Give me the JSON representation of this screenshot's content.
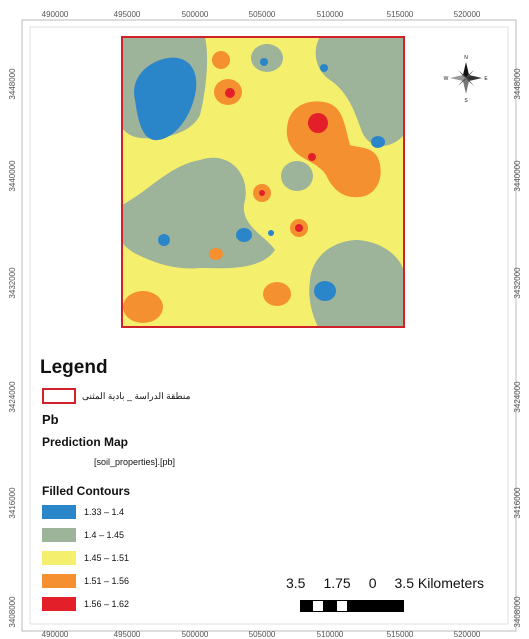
{
  "map": {
    "colors": {
      "class1": "#2b86c9",
      "class2": "#9db39a",
      "class3": "#f5ef6e",
      "class4": "#f4902f",
      "class5": "#e3202a",
      "aoi_border": "#d0202a"
    },
    "x_ticks": [
      "490000",
      "495000",
      "500000",
      "505000",
      "510000",
      "515000",
      "520000"
    ],
    "y_ticks": [
      "3448000",
      "3440000",
      "3432000",
      "3424000",
      "3416000",
      "3408000"
    ],
    "north_arrow": {
      "icon": "compass-rose-icon",
      "letters": [
        "N",
        "E",
        "S",
        "W"
      ]
    }
  },
  "legend": {
    "title": "Legend",
    "aoi_label": "منطقة الدراسة _ بادية المثنى",
    "layer_name": "Pb",
    "prediction_title": "Prediction Map",
    "prediction_sub": "[soil_properties].[pb]",
    "filled_title": "Filled Contours",
    "classes": [
      {
        "label": "1.33 – 1.4",
        "color": "#2b86c9"
      },
      {
        "label": "1.4 – 1.45",
        "color": "#9db39a"
      },
      {
        "label": "1.45 – 1.51",
        "color": "#f5ef6e"
      },
      {
        "label": "1.51 – 1.56",
        "color": "#f4902f"
      },
      {
        "label": "1.56 – 1.62",
        "color": "#e3202a"
      }
    ]
  },
  "scale": {
    "labels": [
      "3.5",
      "1.75",
      "0",
      "3.5 Kilometers"
    ]
  }
}
